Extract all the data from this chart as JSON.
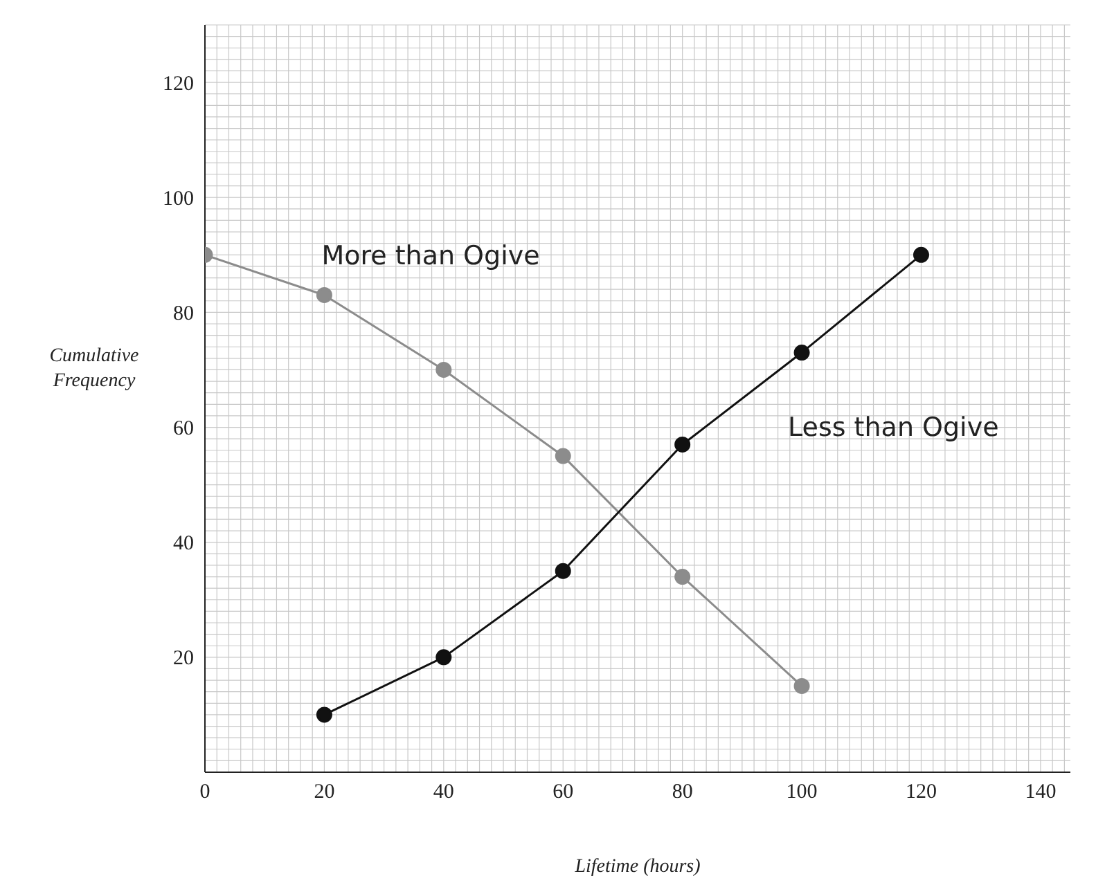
{
  "chart_data": {
    "type": "line",
    "xlabel": "Lifetime (hours)",
    "ylabel": "Cumulative Frequency",
    "x": [
      0,
      20,
      40,
      60,
      80,
      100,
      120
    ],
    "series": [
      {
        "name": "More than Ogive",
        "color": "#8c8c8c",
        "values": [
          90,
          83,
          70,
          55,
          34,
          15,
          null
        ]
      },
      {
        "name": "Less than Ogive",
        "color": "#111111",
        "values": [
          null,
          10,
          20,
          35,
          57,
          73,
          90
        ]
      }
    ],
    "xlim": [
      0,
      145
    ],
    "xticks": [
      0,
      20,
      40,
      60,
      80,
      100,
      120,
      140
    ],
    "ylim": [
      0,
      130
    ],
    "yticks": [
      20,
      40,
      60,
      80,
      100,
      120
    ],
    "grid": true,
    "legend": false,
    "marker": "circle",
    "line_style": "solid"
  }
}
